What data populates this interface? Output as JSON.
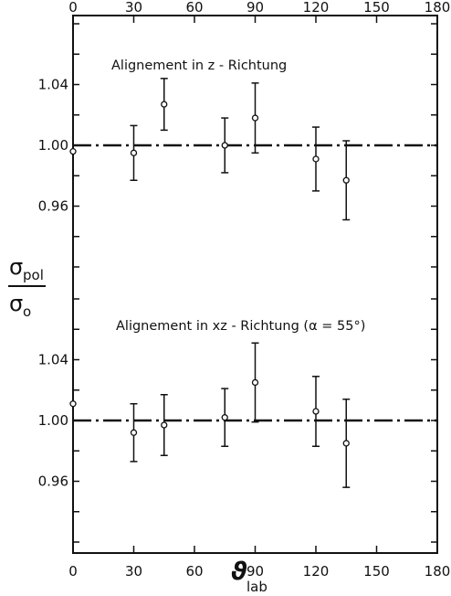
{
  "chart_data": {
    "type": "scatter",
    "x_ticks": [
      "0",
      "30",
      "60",
      "90",
      "120",
      "150",
      "180"
    ],
    "y_ticks": [
      "0.96",
      "1.00",
      "1.04"
    ],
    "xlabel": "ϑ",
    "xlabel_sub": "lab",
    "ylabel_num": "σ",
    "ylabel_num_sub": "pol",
    "ylabel_den": "σ",
    "ylabel_den_sub": "o",
    "xlim": [
      0,
      180
    ],
    "reference_line": 1.0,
    "panels": [
      {
        "name": "top",
        "title": "Alignement in z - Richtung",
        "ylim": [
          0.925,
          1.085
        ],
        "points": [
          {
            "x": 0,
            "y": 0.996,
            "err": 0.0
          },
          {
            "x": 30,
            "y": 0.995,
            "err": 0.018
          },
          {
            "x": 45,
            "y": 1.027,
            "err": 0.017
          },
          {
            "x": 75,
            "y": 1.0,
            "err": 0.018
          },
          {
            "x": 90,
            "y": 1.018,
            "err": 0.023
          },
          {
            "x": 120,
            "y": 0.991,
            "err": 0.021
          },
          {
            "x": 135,
            "y": 0.977,
            "err": 0.026
          }
        ]
      },
      {
        "name": "bottom",
        "title": "Alignement in xz - Richtung (α = 55°)",
        "ylim": [
          0.925,
          1.085
        ],
        "points": [
          {
            "x": 0,
            "y": 1.011,
            "err": 0.0
          },
          {
            "x": 30,
            "y": 0.992,
            "err": 0.019
          },
          {
            "x": 45,
            "y": 0.997,
            "err": 0.02
          },
          {
            "x": 75,
            "y": 1.002,
            "err": 0.019
          },
          {
            "x": 90,
            "y": 1.025,
            "err": 0.026
          },
          {
            "x": 120,
            "y": 1.006,
            "err": 0.023
          },
          {
            "x": 135,
            "y": 0.985,
            "err": 0.029
          }
        ]
      }
    ]
  }
}
